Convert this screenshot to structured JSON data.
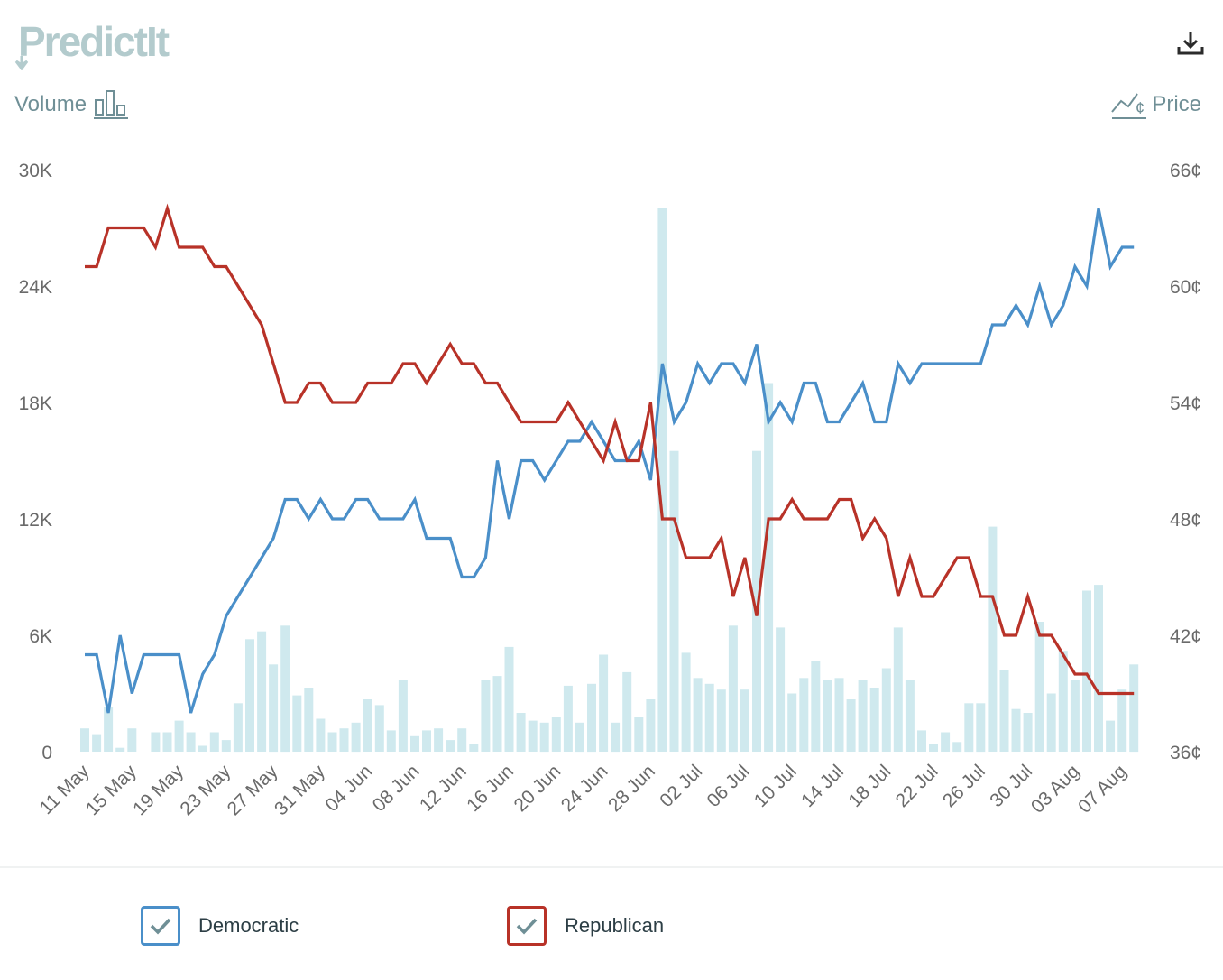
{
  "brand": {
    "name": "PredictIt"
  },
  "header": {
    "volume_label": "Volume",
    "price_label": "Price",
    "download_icon": "download-icon"
  },
  "colors": {
    "democratic": "#4a8fc9",
    "republican": "#b83228",
    "volume": "#cfe9ee",
    "axis_text": "#6a6a6a",
    "muted": "#6f8f96"
  },
  "chart_data": {
    "type": "line",
    "title": "",
    "left_axis": {
      "label": "Volume",
      "ticks": [
        "0",
        "6K",
        "12K",
        "18K",
        "24K",
        "30K"
      ],
      "range": [
        0,
        30000
      ]
    },
    "right_axis": {
      "label": "Price",
      "ticks": [
        "36¢",
        "42¢",
        "48¢",
        "54¢",
        "60¢",
        "66¢"
      ],
      "range": [
        36,
        66
      ]
    },
    "x_ticks": [
      "11 May",
      "15 May",
      "19 May",
      "23 May",
      "27 May",
      "31 May",
      "04 Jun",
      "08 Jun",
      "12 Jun",
      "16 Jun",
      "20 Jun",
      "24 Jun",
      "28 Jun",
      "02 Jul",
      "06 Jul",
      "10 Jul",
      "14 Jul",
      "18 Jul",
      "22 Jul",
      "26 Jul",
      "30 Jul",
      "03 Aug",
      "07 Aug"
    ],
    "x_start": "11 May",
    "day_count": 90,
    "series": [
      {
        "name": "Democratic",
        "values": [
          41,
          41,
          38,
          42,
          39,
          41,
          41,
          41,
          41,
          38,
          40,
          41,
          43,
          44,
          45,
          46,
          47,
          49,
          49,
          48,
          49,
          48,
          48,
          49,
          49,
          48,
          48,
          48,
          49,
          47,
          47,
          47,
          45,
          45,
          46,
          51,
          48,
          51,
          51,
          50,
          51,
          52,
          52,
          53,
          52,
          51,
          51,
          52,
          50,
          56,
          53,
          54,
          56,
          55,
          56,
          56,
          55,
          57,
          53,
          54,
          53,
          55,
          55,
          53,
          53,
          54,
          55,
          53,
          53,
          56,
          55,
          56,
          56,
          56,
          56,
          56,
          56,
          58,
          58,
          59,
          58,
          60,
          58,
          59,
          61,
          60,
          64,
          61,
          62,
          62
        ]
      },
      {
        "name": "Republican",
        "values": [
          61,
          61,
          63,
          63,
          63,
          63,
          62,
          64,
          62,
          62,
          62,
          61,
          61,
          60,
          59,
          58,
          56,
          54,
          54,
          55,
          55,
          54,
          54,
          54,
          55,
          55,
          55,
          56,
          56,
          55,
          56,
          57,
          56,
          56,
          55,
          55,
          54,
          53,
          53,
          53,
          53,
          54,
          53,
          52,
          51,
          53,
          51,
          51,
          54,
          48,
          48,
          46,
          46,
          46,
          47,
          44,
          46,
          43,
          48,
          48,
          49,
          48,
          48,
          48,
          49,
          49,
          47,
          48,
          47,
          44,
          46,
          44,
          44,
          45,
          46,
          46,
          44,
          44,
          42,
          42,
          44,
          42,
          42,
          41,
          40,
          40,
          39,
          39,
          39,
          39
        ]
      }
    ],
    "volume": {
      "name": "Volume",
      "values": [
        1200,
        900,
        2300,
        200,
        1200,
        0,
        1000,
        1000,
        1600,
        1000,
        300,
        1000,
        600,
        2500,
        5800,
        6200,
        4500,
        6500,
        2900,
        3300,
        1700,
        1000,
        1200,
        1500,
        2700,
        2400,
        1100,
        3700,
        800,
        1100,
        1200,
        600,
        1200,
        400,
        3700,
        3900,
        5400,
        2000,
        1600,
        1500,
        1800,
        3400,
        1500,
        3500,
        5000,
        1500,
        4100,
        1800,
        2700,
        28000,
        15500,
        5100,
        3800,
        3500,
        3200,
        6500,
        3200,
        15500,
        19000,
        6400,
        3000,
        3800,
        4700,
        3700,
        3800,
        2700,
        3700,
        3300,
        4300,
        6400,
        3700,
        1100,
        400,
        1000,
        500,
        2500,
        2500,
        11600,
        4200,
        2200,
        2000,
        6700,
        3000,
        5200,
        3700,
        8300,
        8600,
        1600,
        3200,
        4500
      ]
    },
    "grid": false
  },
  "legend": {
    "items": [
      {
        "label": "Democratic",
        "checked": true
      },
      {
        "label": "Republican",
        "checked": true
      }
    ]
  }
}
